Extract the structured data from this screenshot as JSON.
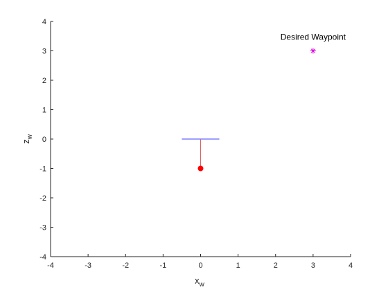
{
  "colors": {
    "axis": "#262626",
    "drone_body": "#7f7fff",
    "tether": "#e06060",
    "payload": "#ff0000",
    "waypoint": "#e000e0"
  },
  "chart_data": {
    "type": "scatter",
    "title": "",
    "xlabel": "x",
    "xlabel_subscript": "w",
    "ylabel": "z",
    "ylabel_subscript": "w",
    "xlim": [
      -4,
      4
    ],
    "ylim": [
      -4,
      4
    ],
    "grid": false,
    "x_ticks": [
      -4,
      -3,
      -2,
      -1,
      0,
      1,
      2,
      3,
      4
    ],
    "y_ticks": [
      -4,
      -3,
      -2,
      -1,
      0,
      1,
      2,
      3,
      4
    ],
    "x_tick_labels": [
      "-4",
      "-3",
      "-2",
      "-1",
      "0",
      "1",
      "2",
      "3",
      "4"
    ],
    "y_tick_labels": [
      "-4",
      "-3",
      "-2",
      "-1",
      "0",
      "1",
      "2",
      "3",
      "4"
    ],
    "drone_body": {
      "x": [
        -0.5,
        0.5
      ],
      "z": [
        0,
        0
      ]
    },
    "tether": {
      "x": [
        0,
        0
      ],
      "z": [
        0,
        -1
      ]
    },
    "payload": {
      "x": 0,
      "z": -1
    },
    "waypoint": {
      "x": 3,
      "z": 3,
      "marker": "*",
      "label": "Desired Waypoint"
    }
  }
}
